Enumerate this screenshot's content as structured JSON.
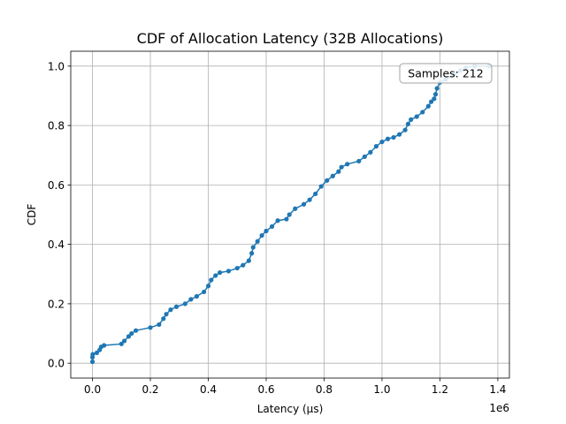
{
  "chart_data": {
    "type": "line",
    "title": "CDF of Allocation Latency (32B Allocations)",
    "xlabel": "Latency (µs)",
    "ylabel": "CDF",
    "x_offset_label": "1e6",
    "x_scale": 1000000,
    "xlim": [
      -75000,
      1440000
    ],
    "ylim": [
      -0.05,
      1.05
    ],
    "xticks": [
      0,
      0.2,
      0.4,
      0.6,
      0.8,
      1.0,
      1.2,
      1.4
    ],
    "xtick_labels": [
      "0.0",
      "0.2",
      "0.4",
      "0.6",
      "0.8",
      "1.0",
      "1.2",
      "1.4"
    ],
    "yticks": [
      0.0,
      0.2,
      0.4,
      0.6,
      0.8,
      1.0
    ],
    "ytick_labels": [
      "0.0",
      "0.2",
      "0.4",
      "0.6",
      "0.8",
      "1.0"
    ],
    "grid": true,
    "series_color": "#1f77b4",
    "annotation": "Samples: 212",
    "annotation_position": "top-right",
    "series": [
      {
        "name": "CDF",
        "points": [
          [
            0,
            0.005
          ],
          [
            0,
            0.02
          ],
          [
            1000,
            0.03
          ],
          [
            15000,
            0.035
          ],
          [
            25000,
            0.045
          ],
          [
            30000,
            0.055
          ],
          [
            40000,
            0.06
          ],
          [
            100000,
            0.065
          ],
          [
            110000,
            0.075
          ],
          [
            125000,
            0.09
          ],
          [
            135000,
            0.1
          ],
          [
            150000,
            0.11
          ],
          [
            200000,
            0.12
          ],
          [
            230000,
            0.13
          ],
          [
            245000,
            0.15
          ],
          [
            255000,
            0.165
          ],
          [
            270000,
            0.18
          ],
          [
            290000,
            0.19
          ],
          [
            320000,
            0.2
          ],
          [
            340000,
            0.215
          ],
          [
            360000,
            0.225
          ],
          [
            385000,
            0.24
          ],
          [
            400000,
            0.26
          ],
          [
            410000,
            0.28
          ],
          [
            425000,
            0.295
          ],
          [
            440000,
            0.305
          ],
          [
            470000,
            0.31
          ],
          [
            500000,
            0.32
          ],
          [
            520000,
            0.33
          ],
          [
            540000,
            0.345
          ],
          [
            550000,
            0.37
          ],
          [
            555000,
            0.39
          ],
          [
            570000,
            0.41
          ],
          [
            585000,
            0.43
          ],
          [
            600000,
            0.445
          ],
          [
            620000,
            0.46
          ],
          [
            640000,
            0.48
          ],
          [
            670000,
            0.485
          ],
          [
            680000,
            0.5
          ],
          [
            700000,
            0.52
          ],
          [
            730000,
            0.535
          ],
          [
            750000,
            0.55
          ],
          [
            770000,
            0.57
          ],
          [
            790000,
            0.595
          ],
          [
            810000,
            0.615
          ],
          [
            830000,
            0.63
          ],
          [
            850000,
            0.645
          ],
          [
            860000,
            0.66
          ],
          [
            880000,
            0.67
          ],
          [
            920000,
            0.68
          ],
          [
            940000,
            0.695
          ],
          [
            960000,
            0.71
          ],
          [
            980000,
            0.73
          ],
          [
            1000000,
            0.745
          ],
          [
            1020000,
            0.755
          ],
          [
            1040000,
            0.76
          ],
          [
            1060000,
            0.77
          ],
          [
            1080000,
            0.785
          ],
          [
            1090000,
            0.805
          ],
          [
            1100000,
            0.82
          ],
          [
            1120000,
            0.83
          ],
          [
            1140000,
            0.845
          ],
          [
            1160000,
            0.865
          ],
          [
            1170000,
            0.88
          ],
          [
            1180000,
            0.89
          ],
          [
            1185000,
            0.905
          ],
          [
            1190000,
            0.925
          ],
          [
            1200000,
            0.945
          ],
          [
            1220000,
            0.955
          ],
          [
            1250000,
            0.97
          ],
          [
            1270000,
            0.985
          ],
          [
            1290000,
            0.995
          ],
          [
            1320000,
            1.0
          ],
          [
            1370000,
            1.0
          ]
        ]
      }
    ]
  }
}
